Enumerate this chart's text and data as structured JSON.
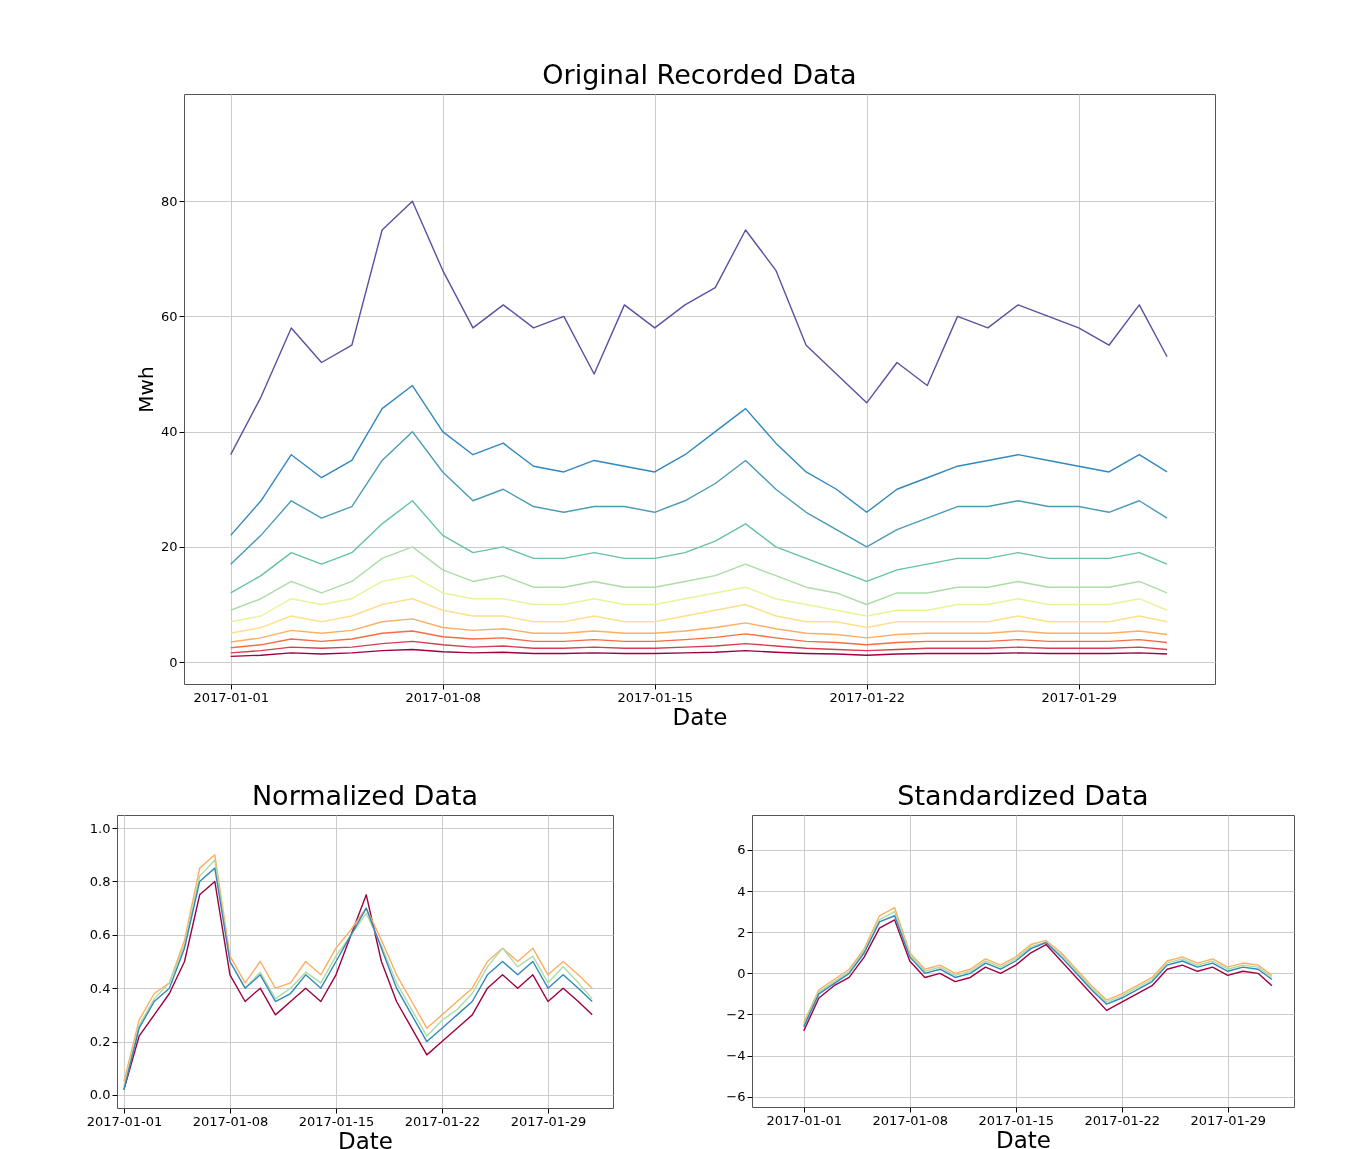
{
  "chart_data": [
    {
      "type": "line",
      "title": "Original Recorded Data",
      "xlabel": "Date",
      "ylabel": "Mwh",
      "grid": true,
      "x": [
        "2017-01-01T00:00",
        "2017-01-02T00:00",
        "2017-01-03T00:00",
        "2017-01-04T00:00",
        "2017-01-05T00:00",
        "2017-01-06T00:00",
        "2017-01-07T00:00",
        "2017-01-08T00:00",
        "2017-01-09T00:00",
        "2017-01-10T00:00",
        "2017-01-11T00:00",
        "2017-01-12T00:00",
        "2017-01-13T00:00",
        "2017-01-14T00:00",
        "2017-01-15T00:00",
        "2017-01-16T00:00",
        "2017-01-17T00:00",
        "2017-01-18T00:00",
        "2017-01-19T00:00",
        "2017-01-20T00:00",
        "2017-01-21T00:00",
        "2017-01-22T00:00",
        "2017-01-23T00:00",
        "2017-01-24T00:00",
        "2017-01-25T00:00",
        "2017-01-26T00:00",
        "2017-01-27T00:00",
        "2017-01-28T00:00",
        "2017-01-29T00:00",
        "2017-01-30T00:00",
        "2017-01-31T00:00",
        "2017-01-31T22:00"
      ],
      "xlim": [
        "2016-12-30T11:00",
        "2017-02-02T12:00"
      ],
      "ylim": [
        -3.8,
        98.6
      ],
      "xticks": [
        "2017-01-01",
        "2017-01-08",
        "2017-01-15",
        "2017-01-22",
        "2017-01-29"
      ],
      "yticks": [
        0,
        20,
        40,
        60,
        80
      ],
      "series": [
        {
          "color": "#5e4fa2",
          "values": [
            36,
            46,
            58,
            52,
            55,
            75,
            80,
            68,
            58,
            62,
            58,
            60,
            50,
            62,
            58,
            62,
            65,
            75,
            68,
            55,
            50,
            45,
            52,
            48,
            60,
            58,
            62,
            60,
            58,
            55,
            62,
            53
          ]
        },
        {
          "color": "#3288bd",
          "values": [
            22,
            28,
            36,
            32,
            35,
            44,
            48,
            40,
            36,
            38,
            34,
            33,
            35,
            34,
            33,
            36,
            40,
            44,
            38,
            33,
            30,
            26,
            30,
            32,
            34,
            35,
            36,
            35,
            34,
            33,
            36,
            33
          ]
        },
        {
          "color": "#4a9cb6",
          "values": [
            17,
            22,
            28,
            25,
            27,
            35,
            40,
            33,
            28,
            30,
            27,
            26,
            27,
            27,
            26,
            28,
            31,
            35,
            30,
            26,
            23,
            20,
            23,
            25,
            27,
            27,
            28,
            27,
            27,
            26,
            28,
            25
          ]
        },
        {
          "color": "#66c2a5",
          "values": [
            12,
            15,
            19,
            17,
            19,
            24,
            28,
            22,
            19,
            20,
            18,
            18,
            19,
            18,
            18,
            19,
            21,
            24,
            20,
            18,
            16,
            14,
            16,
            17,
            18,
            18,
            19,
            18,
            18,
            18,
            19,
            17
          ]
        },
        {
          "color": "#abdda4",
          "values": [
            9,
            11,
            14,
            12,
            14,
            18,
            20,
            16,
            14,
            15,
            13,
            13,
            14,
            13,
            13,
            14,
            15,
            17,
            15,
            13,
            12,
            10,
            12,
            12,
            13,
            13,
            14,
            13,
            13,
            13,
            14,
            12
          ]
        },
        {
          "color": "#e6f598",
          "values": [
            7,
            8,
            11,
            10,
            11,
            14,
            15,
            12,
            11,
            11,
            10,
            10,
            11,
            10,
            10,
            11,
            12,
            13,
            11,
            10,
            9,
            8,
            9,
            9,
            10,
            10,
            11,
            10,
            10,
            10,
            11,
            9
          ]
        },
        {
          "color": "#fee08b",
          "values": [
            5,
            6,
            8,
            7,
            8,
            10,
            11,
            9,
            8,
            8,
            7,
            7,
            8,
            7,
            7,
            8,
            9,
            10,
            8,
            7,
            7,
            6,
            7,
            7,
            7,
            7,
            8,
            7,
            7,
            7,
            8,
            7
          ]
        },
        {
          "color": "#fdae61",
          "values": [
            3.5,
            4.2,
            5.5,
            5,
            5.5,
            7,
            7.5,
            6,
            5.5,
            5.8,
            5,
            5,
            5.4,
            5,
            5,
            5.4,
            6,
            6.8,
            5.8,
            5,
            4.8,
            4.2,
            4.8,
            5,
            5,
            5,
            5.4,
            5,
            5,
            5,
            5.4,
            4.8
          ]
        },
        {
          "color": "#f46d43",
          "values": [
            2.5,
            3,
            4,
            3.6,
            4,
            5,
            5.4,
            4.4,
            4,
            4.2,
            3.6,
            3.6,
            3.9,
            3.6,
            3.6,
            3.9,
            4.3,
            4.9,
            4.2,
            3.6,
            3.4,
            3,
            3.4,
            3.6,
            3.6,
            3.6,
            3.9,
            3.6,
            3.6,
            3.6,
            3.9,
            3.4
          ]
        },
        {
          "color": "#d53e4f",
          "values": [
            1.6,
            2,
            2.6,
            2.4,
            2.6,
            3.2,
            3.6,
            3,
            2.6,
            2.8,
            2.4,
            2.4,
            2.6,
            2.4,
            2.4,
            2.6,
            2.8,
            3.2,
            2.8,
            2.4,
            2.2,
            2,
            2.2,
            2.4,
            2.4,
            2.4,
            2.6,
            2.4,
            2.4,
            2.4,
            2.6,
            2.2
          ]
        },
        {
          "color": "#9e0142",
          "values": [
            1,
            1.2,
            1.6,
            1.4,
            1.6,
            2,
            2.2,
            1.8,
            1.6,
            1.7,
            1.5,
            1.5,
            1.6,
            1.5,
            1.5,
            1.6,
            1.7,
            2,
            1.7,
            1.5,
            1.4,
            1.2,
            1.4,
            1.5,
            1.5,
            1.5,
            1.6,
            1.5,
            1.5,
            1.5,
            1.6,
            1.4
          ]
        }
      ]
    },
    {
      "type": "line",
      "title": "Normalized Data",
      "xlabel": "Date",
      "grid": true,
      "x": [
        "2017-01-01T00:00",
        "2017-01-02T00:00",
        "2017-01-03T00:00",
        "2017-01-04T00:00",
        "2017-01-05T00:00",
        "2017-01-06T00:00",
        "2017-01-07T00:00",
        "2017-01-08T00:00",
        "2017-01-09T00:00",
        "2017-01-10T00:00",
        "2017-01-11T00:00",
        "2017-01-12T00:00",
        "2017-01-13T00:00",
        "2017-01-14T00:00",
        "2017-01-15T00:00",
        "2017-01-16T00:00",
        "2017-01-17T00:00",
        "2017-01-18T00:00",
        "2017-01-19T00:00",
        "2017-01-20T00:00",
        "2017-01-21T00:00",
        "2017-01-22T00:00",
        "2017-01-23T00:00",
        "2017-01-24T00:00",
        "2017-01-25T00:00",
        "2017-01-26T00:00",
        "2017-01-27T00:00",
        "2017-01-28T00:00",
        "2017-01-29T00:00",
        "2017-01-30T00:00",
        "2017-01-31T00:00",
        "2017-01-31T22:00"
      ],
      "xlim": [
        "2016-12-31T13:00",
        "2017-02-02T07:00"
      ],
      "ylim": [
        -0.049,
        1.049
      ],
      "xticks": [
        "2017-01-01",
        "2017-01-08",
        "2017-01-15",
        "2017-01-22",
        "2017-01-29"
      ],
      "yticks": [
        {
          "value": 0,
          "label": "0.0"
        },
        {
          "value": 0.2,
          "label": "0.2"
        },
        {
          "value": 0.4,
          "label": "0.4"
        },
        {
          "value": 0.6,
          "label": "0.6"
        },
        {
          "value": 0.8,
          "label": "0.8"
        },
        {
          "value": 1,
          "label": "1.0"
        }
      ],
      "series": [
        {
          "color": "#9e0142",
          "values": [
            0.02,
            0.22,
            0.3,
            0.38,
            0.5,
            0.75,
            0.8,
            0.45,
            0.35,
            0.4,
            0.3,
            0.35,
            0.4,
            0.35,
            0.45,
            0.6,
            0.75,
            0.5,
            0.35,
            0.25,
            0.15,
            0.2,
            0.25,
            0.3,
            0.4,
            0.45,
            0.4,
            0.45,
            0.35,
            0.4,
            0.35,
            0.3
          ]
        },
        {
          "color": "#fdae61",
          "values": [
            0.05,
            0.28,
            0.38,
            0.42,
            0.58,
            0.85,
            0.9,
            0.52,
            0.42,
            0.5,
            0.4,
            0.42,
            0.5,
            0.45,
            0.55,
            0.62,
            0.7,
            0.58,
            0.45,
            0.35,
            0.25,
            0.3,
            0.35,
            0.4,
            0.5,
            0.55,
            0.5,
            0.55,
            0.45,
            0.5,
            0.45,
            0.4
          ]
        },
        {
          "color": "#abdda4",
          "values": [
            0.03,
            0.26,
            0.36,
            0.42,
            0.56,
            0.82,
            0.88,
            0.5,
            0.4,
            0.46,
            0.36,
            0.4,
            0.46,
            0.42,
            0.52,
            0.6,
            0.68,
            0.56,
            0.42,
            0.32,
            0.22,
            0.28,
            0.32,
            0.38,
            0.48,
            0.55,
            0.48,
            0.52,
            0.42,
            0.48,
            0.42,
            0.36
          ]
        },
        {
          "color": "#3288bd",
          "values": [
            0.02,
            0.25,
            0.35,
            0.4,
            0.55,
            0.8,
            0.85,
            0.5,
            0.4,
            0.45,
            0.35,
            0.38,
            0.45,
            0.4,
            0.5,
            0.6,
            0.7,
            0.55,
            0.4,
            0.3,
            0.2,
            0.25,
            0.3,
            0.35,
            0.45,
            0.5,
            0.45,
            0.5,
            0.4,
            0.45,
            0.4,
            0.35
          ]
        }
      ]
    },
    {
      "type": "line",
      "title": "Standardized Data",
      "xlabel": "Date",
      "grid": true,
      "x": [
        "2017-01-01T00:00",
        "2017-01-02T00:00",
        "2017-01-03T00:00",
        "2017-01-04T00:00",
        "2017-01-05T00:00",
        "2017-01-06T00:00",
        "2017-01-07T00:00",
        "2017-01-08T00:00",
        "2017-01-09T00:00",
        "2017-01-10T00:00",
        "2017-01-11T00:00",
        "2017-01-12T00:00",
        "2017-01-13T00:00",
        "2017-01-14T00:00",
        "2017-01-15T00:00",
        "2017-01-16T00:00",
        "2017-01-17T00:00",
        "2017-01-18T00:00",
        "2017-01-19T00:00",
        "2017-01-20T00:00",
        "2017-01-21T00:00",
        "2017-01-22T00:00",
        "2017-01-23T00:00",
        "2017-01-24T00:00",
        "2017-01-25T00:00",
        "2017-01-26T00:00",
        "2017-01-27T00:00",
        "2017-01-28T00:00",
        "2017-01-29T00:00",
        "2017-01-30T00:00",
        "2017-01-31T00:00",
        "2017-01-31T22:00"
      ],
      "xlim": [
        "2016-12-28T14:00",
        "2017-02-02T09:00"
      ],
      "ylim": [
        -6.5,
        7.7
      ],
      "xticks": [
        "2017-01-01",
        "2017-01-08",
        "2017-01-15",
        "2017-01-22",
        "2017-01-29"
      ],
      "yticks": [
        {
          "value": -6,
          "label": "−6"
        },
        {
          "value": -4,
          "label": "−4"
        },
        {
          "value": -2,
          "label": "−2"
        },
        0,
        2,
        4,
        6
      ],
      "series": [
        {
          "color": "#9e0142",
          "values": [
            -2.8,
            -1.2,
            -0.6,
            -0.2,
            0.8,
            2.2,
            2.6,
            0.6,
            -0.2,
            0,
            -0.4,
            -0.2,
            0.3,
            0,
            0.4,
            1,
            1.4,
            0.6,
            -0.2,
            -1,
            -1.8,
            -1.4,
            -1,
            -0.6,
            0.2,
            0.4,
            0.1,
            0.3,
            -0.1,
            0.1,
            0,
            -0.6
          ]
        },
        {
          "color": "#fdae61",
          "values": [
            -2.4,
            -0.8,
            -0.3,
            0.2,
            1.2,
            2.8,
            3.2,
            1,
            0.2,
            0.4,
            0,
            0.2,
            0.7,
            0.4,
            0.8,
            1.4,
            1.6,
            1,
            0.2,
            -0.6,
            -1.3,
            -1,
            -0.6,
            -0.2,
            0.6,
            0.8,
            0.5,
            0.7,
            0.3,
            0.5,
            0.4,
            -0.1
          ]
        },
        {
          "color": "#abdda4",
          "values": [
            -2.5,
            -0.9,
            -0.4,
            0.1,
            1.1,
            2.6,
            3,
            0.9,
            0.1,
            0.3,
            -0.1,
            0.1,
            0.6,
            0.3,
            0.7,
            1.3,
            1.5,
            0.9,
            0.1,
            -0.7,
            -1.4,
            -1.1,
            -0.7,
            -0.3,
            0.5,
            0.7,
            0.4,
            0.6,
            0.2,
            0.4,
            0.3,
            -0.2
          ]
        },
        {
          "color": "#3288bd",
          "values": [
            -2.6,
            -1,
            -0.5,
            0,
            1,
            2.5,
            2.8,
            0.8,
            0,
            0.2,
            -0.2,
            0,
            0.5,
            0.2,
            0.6,
            1.2,
            1.5,
            0.8,
            0,
            -0.8,
            -1.5,
            -1.2,
            -0.8,
            -0.4,
            0.4,
            0.6,
            0.3,
            0.5,
            0.1,
            0.3,
            0.2,
            -0.3
          ]
        }
      ]
    }
  ]
}
